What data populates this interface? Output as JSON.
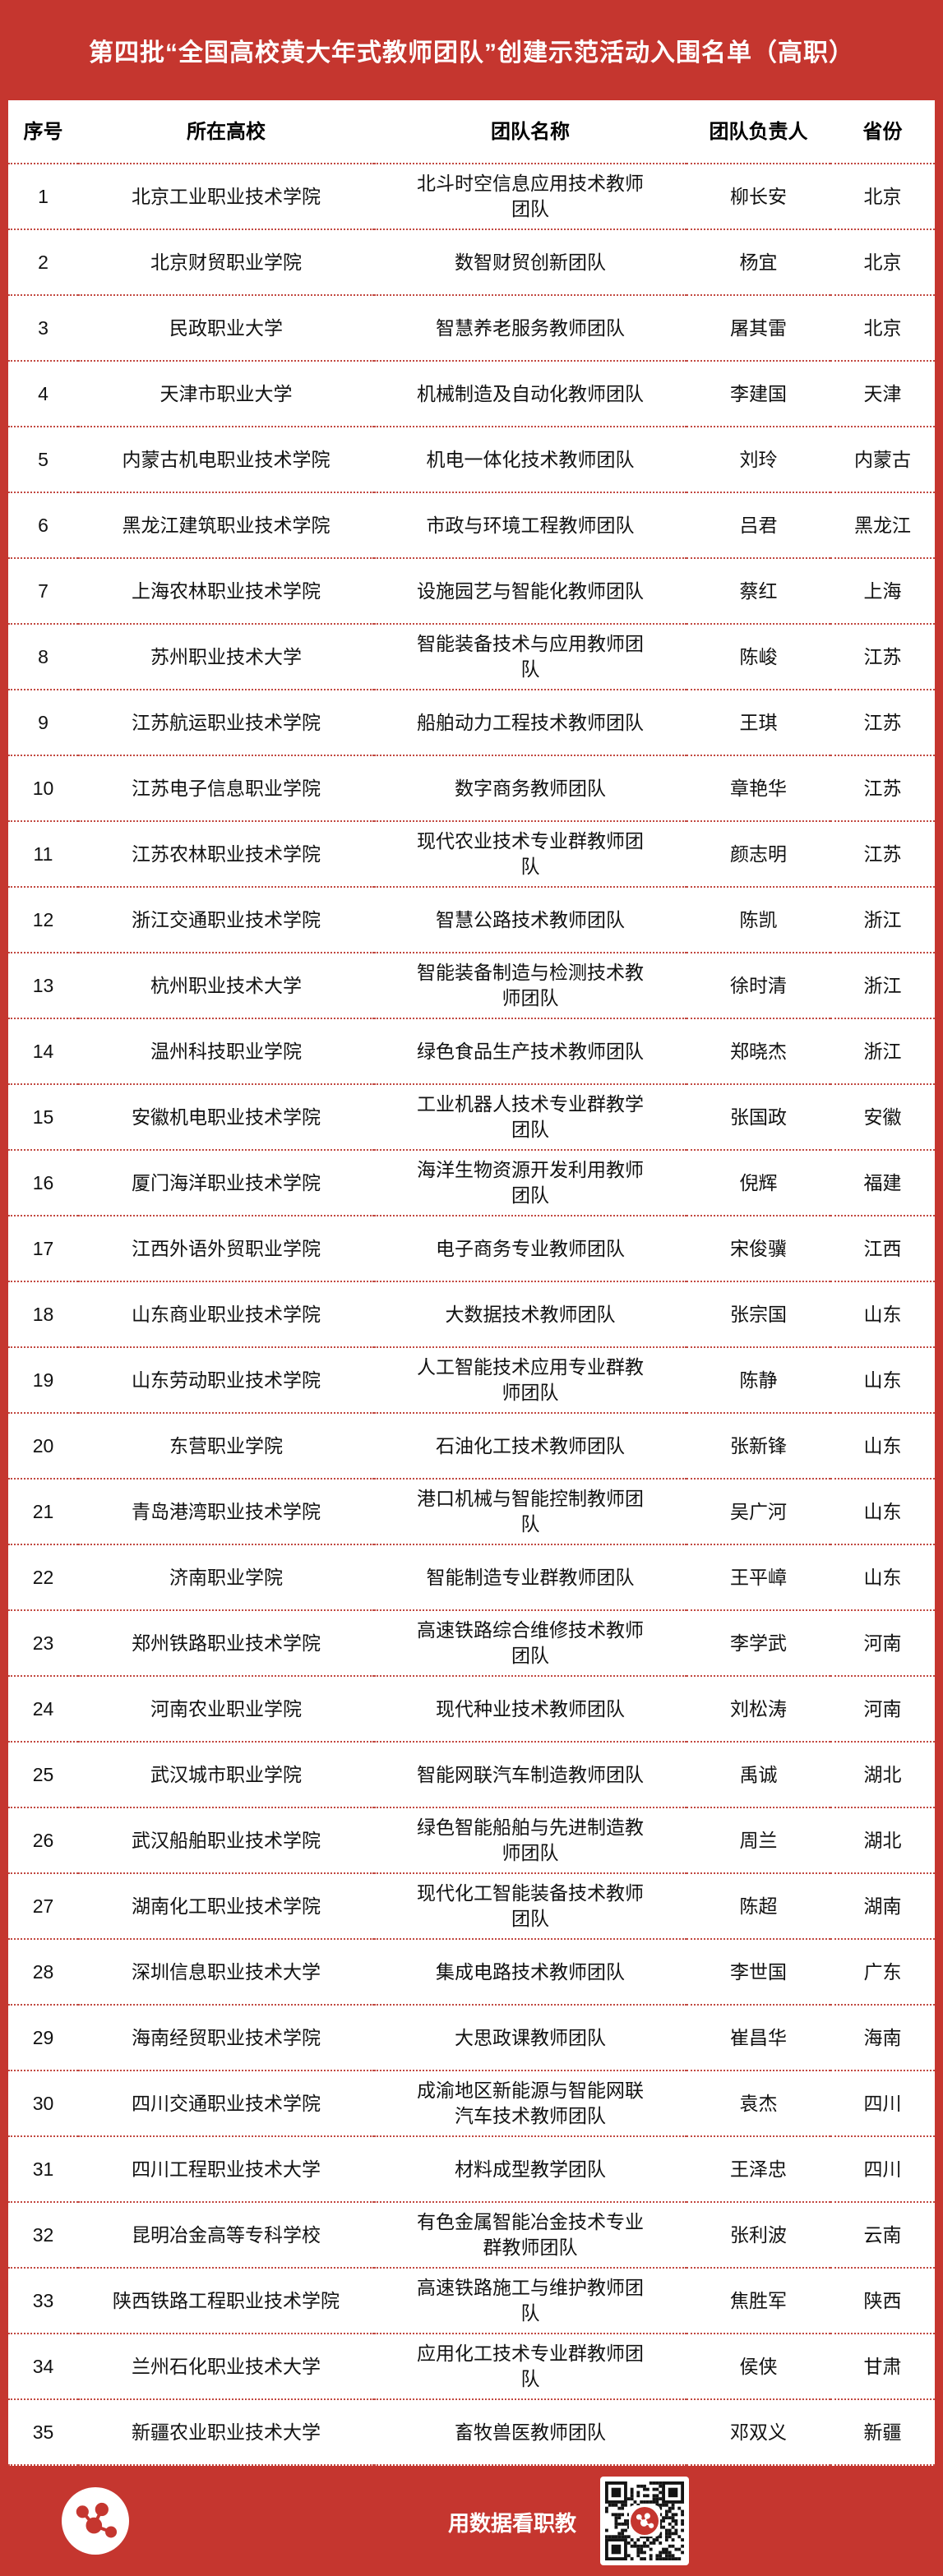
{
  "page": {
    "title": "第四批“全国高校黄大年式教师团队”创建示范活动入围名单（高职）",
    "accent_color": "#c5362f",
    "divider_color": "#c24840"
  },
  "table": {
    "headers": [
      "序号",
      "所在高校",
      "团队名称",
      "团队负责人",
      "省份"
    ],
    "rows": [
      {
        "no": "1",
        "school": "北京工业职业技术学院",
        "team": "北斗时空信息应用技术教师团队",
        "leader": "柳长安",
        "province": "北京"
      },
      {
        "no": "2",
        "school": "北京财贸职业学院",
        "team": "数智财贸创新团队",
        "leader": "杨宜",
        "province": "北京"
      },
      {
        "no": "3",
        "school": "民政职业大学",
        "team": "智慧养老服务教师团队",
        "leader": "屠其雷",
        "province": "北京"
      },
      {
        "no": "4",
        "school": "天津市职业大学",
        "team": "机械制造及自动化教师团队",
        "leader": "李建国",
        "province": "天津"
      },
      {
        "no": "5",
        "school": "内蒙古机电职业技术学院",
        "team": "机电一体化技术教师团队",
        "leader": "刘玲",
        "province": "内蒙古"
      },
      {
        "no": "6",
        "school": "黑龙江建筑职业技术学院",
        "team": "市政与环境工程教师团队",
        "leader": "吕君",
        "province": "黑龙江"
      },
      {
        "no": "7",
        "school": "上海农林职业技术学院",
        "team": "设施园艺与智能化教师团队",
        "leader": "蔡红",
        "province": "上海"
      },
      {
        "no": "8",
        "school": "苏州职业技术大学",
        "team": "智能装备技术与应用教师团队",
        "leader": "陈峻",
        "province": "江苏"
      },
      {
        "no": "9",
        "school": "江苏航运职业技术学院",
        "team": "船舶动力工程技术教师团队",
        "leader": "王琪",
        "province": "江苏"
      },
      {
        "no": "10",
        "school": "江苏电子信息职业学院",
        "team": "数字商务教师团队",
        "leader": "章艳华",
        "province": "江苏"
      },
      {
        "no": "11",
        "school": "江苏农林职业技术学院",
        "team": "现代农业技术专业群教师团队",
        "leader": "颜志明",
        "province": "江苏"
      },
      {
        "no": "12",
        "school": "浙江交通职业技术学院",
        "team": "智慧公路技术教师团队",
        "leader": "陈凯",
        "province": "浙江"
      },
      {
        "no": "13",
        "school": "杭州职业技术大学",
        "team": "智能装备制造与检测技术教师团队",
        "leader": "徐时清",
        "province": "浙江"
      },
      {
        "no": "14",
        "school": "温州科技职业学院",
        "team": "绿色食品生产技术教师团队",
        "leader": "郑晓杰",
        "province": "浙江"
      },
      {
        "no": "15",
        "school": "安徽机电职业技术学院",
        "team": "工业机器人技术专业群教学团队",
        "leader": "张国政",
        "province": "安徽"
      },
      {
        "no": "16",
        "school": "厦门海洋职业技术学院",
        "team": "海洋生物资源开发利用教师团队",
        "leader": "倪辉",
        "province": "福建"
      },
      {
        "no": "17",
        "school": "江西外语外贸职业学院",
        "team": "电子商务专业教师团队",
        "leader": "宋俊骥",
        "province": "江西"
      },
      {
        "no": "18",
        "school": "山东商业职业技术学院",
        "team": "大数据技术教师团队",
        "leader": "张宗国",
        "province": "山东"
      },
      {
        "no": "19",
        "school": "山东劳动职业技术学院",
        "team": "人工智能技术应用专业群教师团队",
        "leader": "陈静",
        "province": "山东"
      },
      {
        "no": "20",
        "school": "东营职业学院",
        "team": "石油化工技术教师团队",
        "leader": "张新锋",
        "province": "山东"
      },
      {
        "no": "21",
        "school": "青岛港湾职业技术学院",
        "team": "港口机械与智能控制教师团队",
        "leader": "吴广河",
        "province": "山东"
      },
      {
        "no": "22",
        "school": "济南职业学院",
        "team": "智能制造专业群教师团队",
        "leader": "王平嶂",
        "province": "山东"
      },
      {
        "no": "23",
        "school": "郑州铁路职业技术学院",
        "team": "高速铁路综合维修技术教师团队",
        "leader": "李学武",
        "province": "河南"
      },
      {
        "no": "24",
        "school": "河南农业职业学院",
        "team": "现代种业技术教师团队",
        "leader": "刘松涛",
        "province": "河南"
      },
      {
        "no": "25",
        "school": "武汉城市职业学院",
        "team": "智能网联汽车制造教师团队",
        "leader": "禹诚",
        "province": "湖北"
      },
      {
        "no": "26",
        "school": "武汉船舶职业技术学院",
        "team": "绿色智能船舶与先进制造教师团队",
        "leader": "周兰",
        "province": "湖北"
      },
      {
        "no": "27",
        "school": "湖南化工职业技术学院",
        "team": "现代化工智能装备技术教师团队",
        "leader": "陈超",
        "province": "湖南"
      },
      {
        "no": "28",
        "school": "深圳信息职业技术大学",
        "team": "集成电路技术教师团队",
        "leader": "李世国",
        "province": "广东"
      },
      {
        "no": "29",
        "school": "海南经贸职业技术学院",
        "team": "大思政课教师团队",
        "leader": "崔昌华",
        "province": "海南"
      },
      {
        "no": "30",
        "school": "四川交通职业技术学院",
        "team": "成渝地区新能源与智能网联汽车技术教师团队",
        "leader": "袁杰",
        "province": "四川"
      },
      {
        "no": "31",
        "school": "四川工程职业技术大学",
        "team": "材料成型教学团队",
        "leader": "王泽忠",
        "province": "四川"
      },
      {
        "no": "32",
        "school": "昆明冶金高等专科学校",
        "team": "有色金属智能冶金技术专业群教师团队",
        "leader": "张利波",
        "province": "云南"
      },
      {
        "no": "33",
        "school": "陕西铁路工程职业技术学院",
        "team": "高速铁路施工与维护教师团队",
        "leader": "焦胜军",
        "province": "陕西"
      },
      {
        "no": "34",
        "school": "兰州石化职业技术大学",
        "team": "应用化工技术专业群教师团队",
        "leader": "侯侠",
        "province": "甘肃"
      },
      {
        "no": "35",
        "school": "新疆农业职业技术大学",
        "team": "畜牧兽医教师团队",
        "leader": "邓双义",
        "province": "新疆"
      }
    ]
  },
  "footer": {
    "slogan": "用数据看职教",
    "logo_icon": "molecule-network-icon",
    "qr_icon": "qr-code"
  }
}
